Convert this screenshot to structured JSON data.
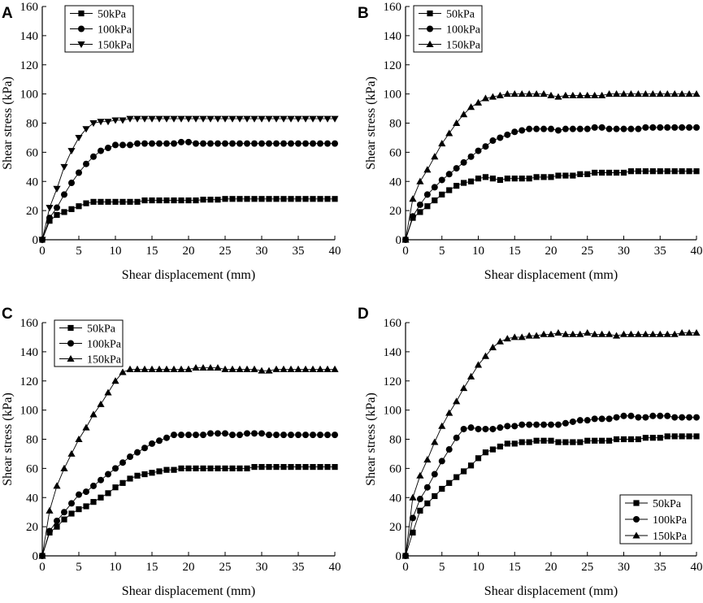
{
  "chart_data": [
    {
      "panel": "A",
      "type": "line",
      "xlabel": "Shear displacement (mm)",
      "ylabel": "Shear stress (kPa)",
      "xlim": [
        0,
        40
      ],
      "ylim": [
        0,
        160
      ],
      "xticks": [
        0,
        5,
        10,
        15,
        20,
        25,
        30,
        35,
        40
      ],
      "yticks": [
        0,
        20,
        40,
        60,
        80,
        100,
        120,
        140,
        160
      ],
      "legend_position": "top-left",
      "series": [
        {
          "name": "50kPa",
          "marker": "square",
          "x": [
            0,
            1,
            2,
            3,
            4,
            5,
            6,
            7,
            8,
            9,
            10,
            11,
            12,
            13,
            14,
            15,
            16,
            17,
            18,
            19,
            20,
            21,
            22,
            23,
            24,
            25,
            26,
            27,
            28,
            29,
            30,
            31,
            32,
            33,
            34,
            35,
            36,
            37,
            38,
            39,
            40
          ],
          "y": [
            0,
            13,
            17,
            19,
            21,
            23,
            25,
            26,
            26,
            26,
            26,
            26,
            26,
            26,
            27,
            27,
            27,
            27,
            27,
            27,
            27,
            27,
            27.5,
            27.5,
            27.5,
            28,
            28,
            28,
            28,
            28,
            28,
            28,
            28,
            28,
            28,
            28,
            28,
            28,
            28,
            28,
            28
          ]
        },
        {
          "name": "100kPa",
          "marker": "circle",
          "x": [
            0,
            1,
            2,
            3,
            4,
            5,
            6,
            7,
            8,
            9,
            10,
            11,
            12,
            13,
            14,
            15,
            16,
            17,
            18,
            19,
            20,
            21,
            22,
            23,
            24,
            25,
            26,
            27,
            28,
            29,
            30,
            31,
            32,
            33,
            34,
            35,
            36,
            37,
            38,
            39,
            40
          ],
          "y": [
            0,
            15,
            22,
            31,
            39,
            46,
            52,
            57,
            61,
            63,
            65,
            65,
            65,
            66,
            66,
            66,
            66,
            66,
            66,
            67,
            67,
            66,
            66,
            66,
            66,
            66,
            66,
            66,
            66,
            66,
            66,
            66,
            66,
            66,
            66,
            66,
            66,
            66,
            66,
            66,
            66
          ]
        },
        {
          "name": "150kPa",
          "marker": "triangle-down",
          "x": [
            0,
            1,
            2,
            3,
            4,
            5,
            6,
            7,
            8,
            9,
            10,
            11,
            12,
            13,
            14,
            15,
            16,
            17,
            18,
            19,
            20,
            21,
            22,
            23,
            24,
            25,
            26,
            27,
            28,
            29,
            30,
            31,
            32,
            33,
            34,
            35,
            36,
            37,
            38,
            39,
            40
          ],
          "y": [
            0,
            22,
            35,
            50,
            61,
            70,
            76,
            80,
            81,
            81,
            82,
            82,
            83,
            83,
            83,
            83,
            83,
            83,
            83,
            83,
            83,
            83,
            83,
            83,
            83,
            83,
            83,
            83,
            83,
            83,
            83,
            83,
            83,
            83,
            83,
            83,
            83,
            83,
            83,
            83,
            83
          ]
        }
      ]
    },
    {
      "panel": "B",
      "type": "line",
      "xlabel": "Shear displacement (mm)",
      "ylabel": "Shear stress (kPa)",
      "xlim": [
        0,
        40
      ],
      "ylim": [
        0,
        160
      ],
      "xticks": [
        0,
        5,
        10,
        15,
        20,
        25,
        30,
        35,
        40
      ],
      "yticks": [
        0,
        20,
        40,
        60,
        80,
        100,
        120,
        140,
        160
      ],
      "legend_position": "top-left",
      "series": [
        {
          "name": "50kPa",
          "marker": "square",
          "x": [
            0,
            1,
            2,
            3,
            4,
            5,
            6,
            7,
            8,
            9,
            10,
            11,
            12,
            13,
            14,
            15,
            16,
            17,
            18,
            19,
            20,
            21,
            22,
            23,
            24,
            25,
            26,
            27,
            28,
            29,
            30,
            31,
            32,
            33,
            34,
            35,
            36,
            37,
            38,
            39,
            40
          ],
          "y": [
            0,
            15,
            19,
            23,
            27,
            31,
            34,
            37,
            39,
            40,
            42,
            43,
            42,
            41,
            42,
            42,
            42,
            42,
            43,
            43,
            43,
            44,
            44,
            44,
            45,
            45,
            46,
            46,
            46,
            46,
            46,
            47,
            47,
            47,
            47,
            47,
            47,
            47,
            47,
            47,
            47
          ]
        },
        {
          "name": "100kPa",
          "marker": "circle",
          "x": [
            0,
            1,
            2,
            3,
            4,
            5,
            6,
            7,
            8,
            9,
            10,
            11,
            12,
            13,
            14,
            15,
            16,
            17,
            18,
            19,
            20,
            21,
            22,
            23,
            24,
            25,
            26,
            27,
            28,
            29,
            30,
            31,
            32,
            33,
            34,
            35,
            36,
            37,
            38,
            39,
            40
          ],
          "y": [
            0,
            16,
            24,
            31,
            36,
            41,
            45,
            49,
            53,
            57,
            61,
            64,
            68,
            70,
            72,
            74,
            75,
            76,
            76,
            76,
            76,
            75,
            76,
            76,
            76,
            76,
            77,
            77,
            76,
            76,
            76,
            76,
            76,
            77,
            77,
            77,
            77,
            77,
            77,
            77,
            77
          ]
        },
        {
          "name": "150kPa",
          "marker": "triangle-up",
          "x": [
            0,
            1,
            2,
            3,
            4,
            5,
            6,
            7,
            8,
            9,
            10,
            11,
            12,
            13,
            14,
            15,
            16,
            17,
            18,
            19,
            20,
            21,
            22,
            23,
            24,
            25,
            26,
            27,
            28,
            29,
            30,
            31,
            32,
            33,
            34,
            35,
            36,
            37,
            38,
            39,
            40
          ],
          "y": [
            0,
            28,
            40,
            48,
            57,
            66,
            73,
            80,
            86,
            91,
            94,
            97,
            98,
            99,
            100,
            100,
            100,
            100,
            100,
            100,
            99,
            98,
            99,
            99,
            99,
            99,
            99,
            99,
            100,
            100,
            100,
            100,
            100,
            100,
            100,
            100,
            100,
            100,
            100,
            100,
            100
          ]
        }
      ]
    },
    {
      "panel": "C",
      "type": "line",
      "xlabel": "Shear displacement (mm)",
      "ylabel": "Shear stress (kPa)",
      "xlim": [
        0,
        40
      ],
      "ylim": [
        0,
        160
      ],
      "xticks": [
        0,
        5,
        10,
        15,
        20,
        25,
        30,
        35,
        40
      ],
      "yticks": [
        0,
        20,
        40,
        60,
        80,
        100,
        120,
        140,
        160
      ],
      "legend_position": "top-left",
      "series": [
        {
          "name": "50kPa",
          "marker": "square",
          "x": [
            0,
            1,
            2,
            3,
            4,
            5,
            6,
            7,
            8,
            9,
            10,
            11,
            12,
            13,
            14,
            15,
            16,
            17,
            18,
            19,
            20,
            21,
            22,
            23,
            24,
            25,
            26,
            27,
            28,
            29,
            30,
            31,
            32,
            33,
            34,
            35,
            36,
            37,
            38,
            39,
            40
          ],
          "y": [
            0,
            16,
            20,
            25,
            29,
            32,
            34,
            37,
            40,
            43,
            47,
            50,
            53,
            55,
            56,
            57,
            58,
            59,
            59,
            60,
            60,
            60,
            60,
            60,
            60,
            60,
            60,
            60,
            60,
            61,
            61,
            61,
            61,
            61,
            61,
            61,
            61,
            61,
            61,
            61,
            61
          ]
        },
        {
          "name": "100kPa",
          "marker": "circle",
          "x": [
            0,
            1,
            2,
            3,
            4,
            5,
            6,
            7,
            8,
            9,
            10,
            11,
            12,
            13,
            14,
            15,
            16,
            17,
            18,
            19,
            20,
            21,
            22,
            23,
            24,
            25,
            26,
            27,
            28,
            29,
            30,
            31,
            32,
            33,
            34,
            35,
            36,
            37,
            38,
            39,
            40
          ],
          "y": [
            0,
            17,
            24,
            30,
            36,
            42,
            44,
            48,
            52,
            56,
            60,
            64,
            68,
            71,
            74,
            77,
            79,
            81,
            83,
            83,
            83,
            83,
            83,
            84,
            84,
            84,
            83,
            83,
            84,
            84,
            84,
            83,
            83,
            83,
            83,
            83,
            83,
            83,
            83,
            83,
            83
          ]
        },
        {
          "name": "150kPa",
          "marker": "triangle-up",
          "x": [
            0,
            1,
            2,
            3,
            4,
            5,
            6,
            7,
            8,
            9,
            10,
            11,
            12,
            13,
            14,
            15,
            16,
            17,
            18,
            19,
            20,
            21,
            22,
            23,
            24,
            25,
            26,
            27,
            28,
            29,
            30,
            31,
            32,
            33,
            34,
            35,
            36,
            37,
            38,
            39,
            40
          ],
          "y": [
            0,
            31,
            48,
            60,
            70,
            80,
            88,
            97,
            104,
            112,
            120,
            126,
            128,
            128,
            128,
            128,
            128,
            128,
            128,
            128,
            128,
            129,
            129,
            129,
            129,
            128,
            128,
            128,
            128,
            128,
            127,
            127,
            128,
            128,
            128,
            128,
            128,
            128,
            128,
            128,
            128
          ]
        }
      ]
    },
    {
      "panel": "D",
      "type": "line",
      "xlabel": "Shear displacement (mm)",
      "ylabel": "Shear stress (kPa)",
      "xlim": [
        0,
        40
      ],
      "ylim": [
        0,
        160
      ],
      "xticks": [
        0,
        5,
        10,
        15,
        20,
        25,
        30,
        35,
        40
      ],
      "yticks": [
        0,
        20,
        40,
        60,
        80,
        100,
        120,
        140,
        160
      ],
      "legend_position": "bottom-right",
      "series": [
        {
          "name": "50kPa",
          "marker": "square",
          "x": [
            0,
            1,
            2,
            3,
            4,
            5,
            6,
            7,
            8,
            9,
            10,
            11,
            12,
            13,
            14,
            15,
            16,
            17,
            18,
            19,
            20,
            21,
            22,
            23,
            24,
            25,
            26,
            27,
            28,
            29,
            30,
            31,
            32,
            33,
            34,
            35,
            36,
            37,
            38,
            39,
            40
          ],
          "y": [
            0,
            16,
            31,
            36,
            41,
            46,
            50,
            54,
            58,
            62,
            67,
            71,
            73,
            75,
            77,
            77,
            78,
            78,
            79,
            79,
            79,
            78,
            78,
            78,
            78,
            79,
            79,
            79,
            79,
            80,
            80,
            80,
            80,
            81,
            81,
            81,
            82,
            82,
            82,
            82,
            82
          ]
        },
        {
          "name": "100kPa",
          "marker": "circle",
          "x": [
            0,
            1,
            2,
            3,
            4,
            5,
            6,
            7,
            8,
            9,
            10,
            11,
            12,
            13,
            14,
            15,
            16,
            17,
            18,
            19,
            20,
            21,
            22,
            23,
            24,
            25,
            26,
            27,
            28,
            29,
            30,
            31,
            32,
            33,
            34,
            35,
            36,
            37,
            38,
            39,
            40
          ],
          "y": [
            0,
            26,
            39,
            47,
            56,
            65,
            73,
            81,
            87,
            88,
            87,
            87,
            87,
            88,
            89,
            89,
            90,
            90,
            90,
            90,
            90,
            90,
            91,
            92,
            93,
            93,
            94,
            94,
            94,
            95,
            96,
            96,
            95,
            95,
            96,
            96,
            96,
            95,
            95,
            95,
            95
          ]
        },
        {
          "name": "150kPa",
          "marker": "triangle-up",
          "x": [
            0,
            1,
            2,
            3,
            4,
            5,
            6,
            7,
            8,
            9,
            10,
            11,
            12,
            13,
            14,
            15,
            16,
            17,
            18,
            19,
            20,
            21,
            22,
            23,
            24,
            25,
            26,
            27,
            28,
            29,
            30,
            31,
            32,
            33,
            34,
            35,
            36,
            37,
            38,
            39,
            40
          ],
          "y": [
            0,
            40,
            55,
            66,
            78,
            89,
            98,
            106,
            115,
            123,
            131,
            137,
            143,
            147,
            149,
            150,
            150,
            151,
            151,
            152,
            152,
            153,
            152,
            152,
            152,
            153,
            152,
            152,
            152,
            151,
            152,
            152,
            152,
            152,
            152,
            152,
            152,
            152,
            153,
            153,
            153
          ]
        }
      ]
    }
  ]
}
